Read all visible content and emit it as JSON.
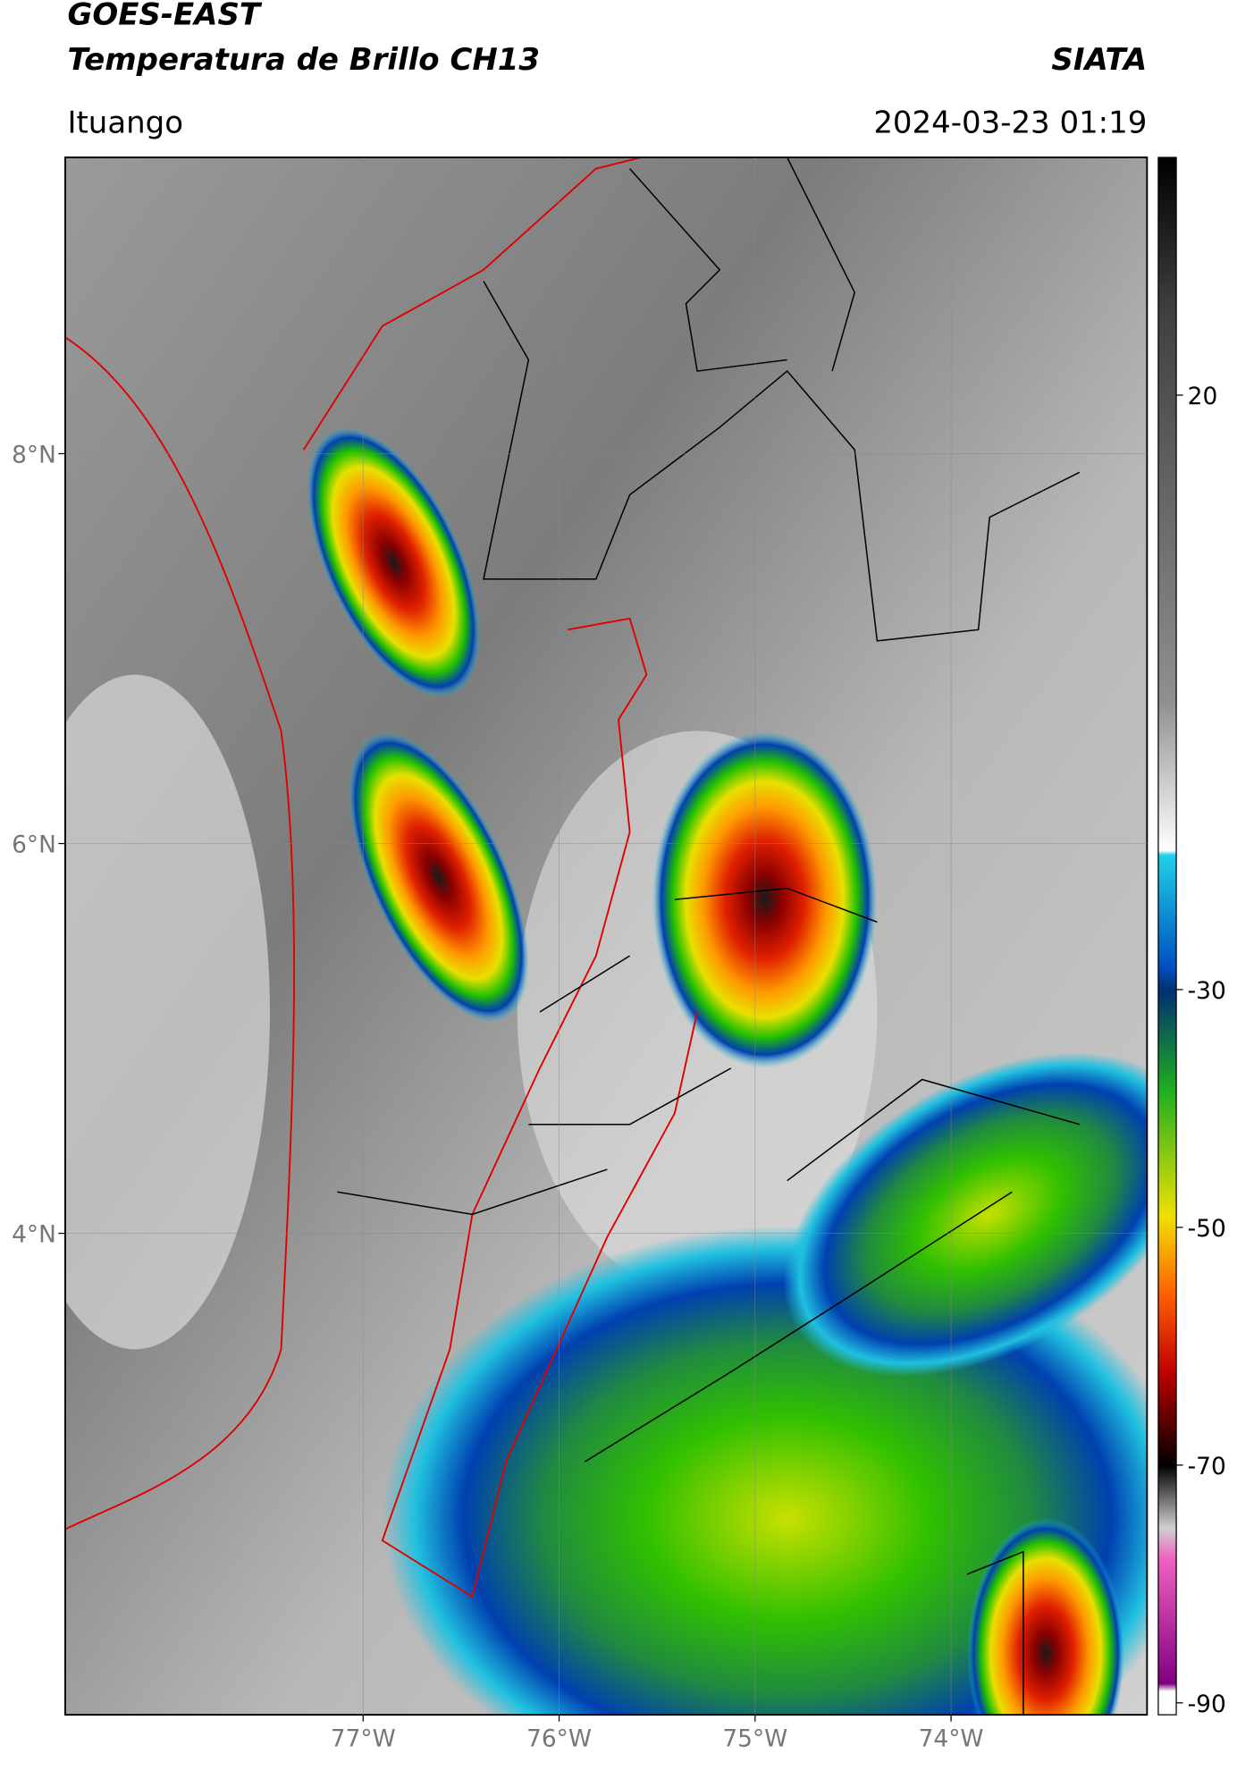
{
  "header": {
    "title": "GOES-EAST",
    "subtitle": "Temperatura de Brillo CH13",
    "source": "SIATA",
    "location": "Ituango",
    "datetime": "2024-03-23 01:19"
  },
  "map": {
    "xlim": [
      -78.52,
      -73.0
    ],
    "ylim": [
      1.53,
      9.52
    ],
    "xticks": [
      {
        "value": -77,
        "label": "77°W"
      },
      {
        "value": -76,
        "label": "76°W"
      },
      {
        "value": -75,
        "label": "75°W"
      },
      {
        "value": -74,
        "label": "74°W"
      }
    ],
    "yticks": [
      {
        "value": 8,
        "label": "8°N"
      },
      {
        "value": 6,
        "label": "6°N"
      },
      {
        "value": 4,
        "label": "4°N"
      }
    ]
  },
  "colorbar": {
    "lim": [
      -91,
      40
    ],
    "ticks": [
      20,
      -30,
      -50,
      -70,
      -90
    ]
  }
}
